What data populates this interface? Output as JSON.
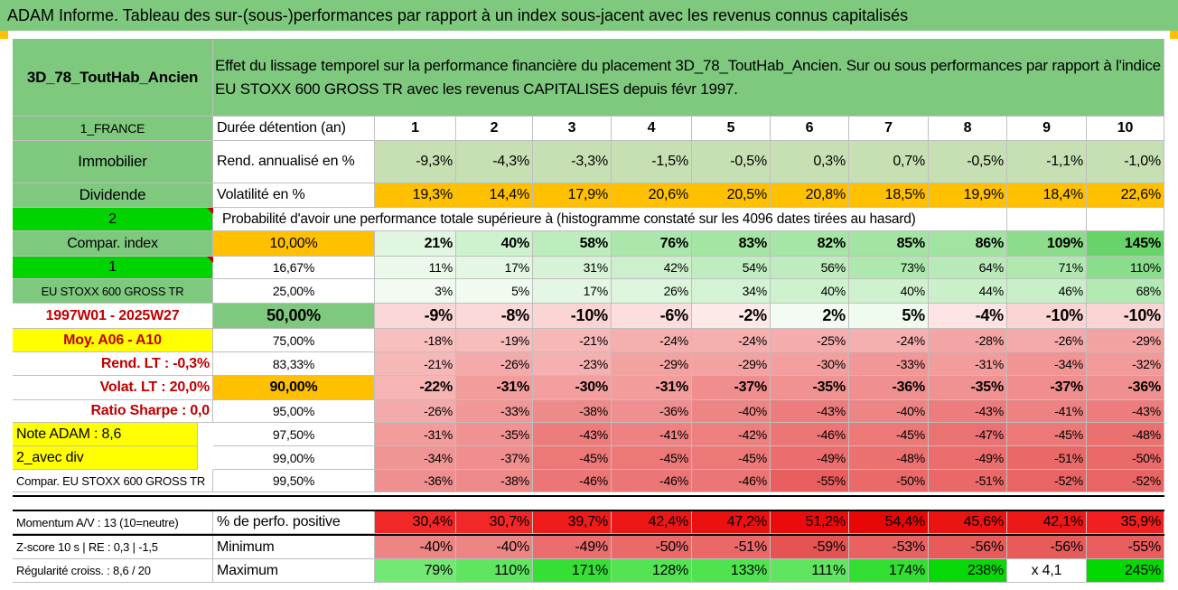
{
  "title": "ADAM Informe. Tableau des sur-(sous-)performances par rapport à un index sous-jacent avec les revenus connus capitalisés",
  "header": {
    "fund_name": "3D_78_ToutHab_Ancien",
    "description": "Effet du lissage temporel sur la performance financière du placement 3D_78_ToutHab_Ancien. Sur ou sous performances par rapport à l'indice EU STOXX 600 GROSS TR avec les revenus CAPITALISES depuis févr 1997."
  },
  "left_panel": {
    "country": "1_FRANCE",
    "category": "Immobilier",
    "type": "Dividende",
    "num1": "2",
    "compar_index_label": "Compar. index",
    "num2": "1",
    "index_name": "EU STOXX 600 GROSS TR",
    "period": "1997W01 - 2025W27",
    "moy": "Moy. A06 - A10",
    "rend_lt": "Rend. LT :   -0,3%",
    "volat_lt": "Volat. LT :   20,0%",
    "sharpe": "Ratio Sharpe :   0,0",
    "note": "Note ADAM : 8,6",
    "div": "2_avec div",
    "compar_full": "Compar. EU STOXX 600 GROSS TR"
  },
  "row_labels": {
    "duree": "Durée détention (an)",
    "rend": "Rend. annualisé en %",
    "vol": "Volatilité en %",
    "proba": "Probabilité d'avoir une performance totale supérieure à (histogramme constaté sur les 4096 dates tirées au hasard)"
  },
  "years": [
    "1",
    "2",
    "3",
    "4",
    "5",
    "6",
    "7",
    "8",
    "9",
    "10"
  ],
  "rend": [
    "-9,3%",
    "-4,3%",
    "-3,3%",
    "-1,5%",
    "-0,5%",
    "0,3%",
    "0,7%",
    "-0,5%",
    "-1,1%",
    "-1,0%"
  ],
  "vol": [
    "19,3%",
    "14,4%",
    "17,9%",
    "20,6%",
    "20,5%",
    "20,8%",
    "18,5%",
    "19,9%",
    "18,4%",
    "22,6%"
  ],
  "percentiles": [
    {
      "p": "10,00%",
      "values": [
        "21%",
        "40%",
        "58%",
        "76%",
        "83%",
        "82%",
        "85%",
        "86%",
        "109%",
        "145%"
      ]
    },
    {
      "p": "16,67%",
      "values": [
        "11%",
        "17%",
        "31%",
        "42%",
        "54%",
        "56%",
        "73%",
        "64%",
        "71%",
        "110%"
      ]
    },
    {
      "p": "25,00%",
      "values": [
        "3%",
        "5%",
        "17%",
        "26%",
        "34%",
        "40%",
        "40%",
        "44%",
        "46%",
        "68%"
      ]
    },
    {
      "p": "50,00%",
      "values": [
        "-9%",
        "-8%",
        "-10%",
        "-6%",
        "-2%",
        "2%",
        "5%",
        "-4%",
        "-10%",
        "-10%"
      ]
    },
    {
      "p": "75,00%",
      "values": [
        "-18%",
        "-19%",
        "-21%",
        "-24%",
        "-24%",
        "-25%",
        "-24%",
        "-28%",
        "-26%",
        "-29%"
      ]
    },
    {
      "p": "83,33%",
      "values": [
        "-21%",
        "-26%",
        "-23%",
        "-29%",
        "-29%",
        "-30%",
        "-33%",
        "-31%",
        "-34%",
        "-32%"
      ]
    },
    {
      "p": "90,00%",
      "values": [
        "-22%",
        "-31%",
        "-30%",
        "-31%",
        "-37%",
        "-35%",
        "-36%",
        "-35%",
        "-37%",
        "-36%"
      ]
    },
    {
      "p": "95,00%",
      "values": [
        "-26%",
        "-33%",
        "-38%",
        "-36%",
        "-40%",
        "-43%",
        "-40%",
        "-43%",
        "-41%",
        "-43%"
      ]
    },
    {
      "p": "97,50%",
      "values": [
        "-31%",
        "-35%",
        "-43%",
        "-41%",
        "-42%",
        "-46%",
        "-45%",
        "-47%",
        "-45%",
        "-48%"
      ]
    },
    {
      "p": "99,00%",
      "values": [
        "-34%",
        "-37%",
        "-45%",
        "-45%",
        "-45%",
        "-49%",
        "-48%",
        "-49%",
        "-51%",
        "-50%"
      ]
    },
    {
      "p": "99,50%",
      "values": [
        "-36%",
        "-38%",
        "-46%",
        "-46%",
        "-46%",
        "-55%",
        "-50%",
        "-51%",
        "-52%",
        "-52%"
      ]
    }
  ],
  "bottom": {
    "momentum_label": "Momentum A/V : 13 (10=neutre)",
    "zscore_label": "Z-score 10 s | RE : 0,3 | -1,5",
    "regularite_label": "Régularité croiss. : 8,6 / 20",
    "pos_label": "% de perfo. positive",
    "min_label": "Minimum",
    "max_label": "Maximum",
    "pos": [
      "30,4%",
      "30,7%",
      "39,7%",
      "42,4%",
      "47,2%",
      "51,2%",
      "54,4%",
      "45,6%",
      "42,1%",
      "35,9%"
    ],
    "min": [
      "-40%",
      "-40%",
      "-49%",
      "-50%",
      "-51%",
      "-59%",
      "-53%",
      "-56%",
      "-56%",
      "-55%"
    ],
    "max": [
      "79%",
      "110%",
      "171%",
      "128%",
      "133%",
      "111%",
      "174%",
      "238%",
      "x 4,1",
      "245%"
    ]
  },
  "colors": {
    "title_bg": "#7ec97e",
    "header_green": "#7ec97e",
    "bright_green": "#00d400",
    "orange": "#ffc000",
    "yellow": "#ffff00",
    "red_text": "#c00000",
    "pale_green": "#c6e0b4"
  }
}
